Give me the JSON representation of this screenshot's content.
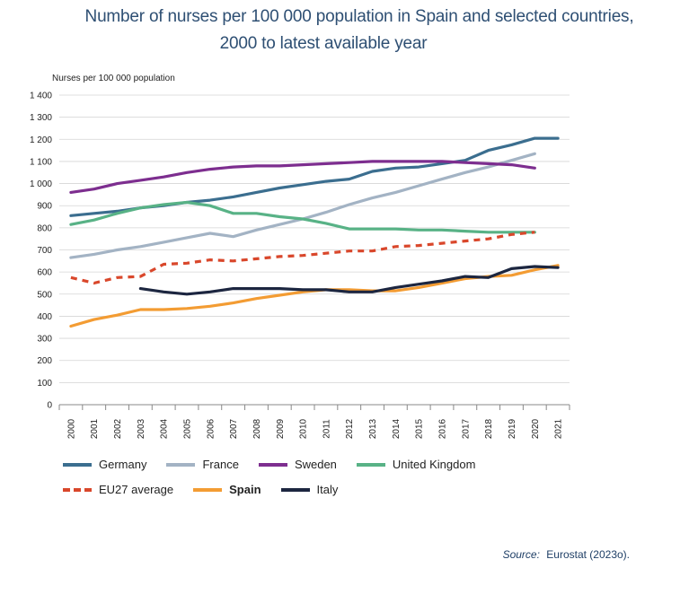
{
  "title_line1": "Number of nurses per 100 000 population in Spain and selected countries,",
  "title_line2": "2000 to latest available year",
  "source_label": "Source:",
  "source_text": "Eurostat (2023o).",
  "chart_data": {
    "type": "line",
    "title": "Number of nurses per 100 000 population in Spain and selected countries, 2000 to latest available year",
    "xlabel": "",
    "ylabel": "Nurses per 100 000 population",
    "ylim": [
      0,
      1400
    ],
    "yticks": [
      0,
      100,
      200,
      300,
      400,
      500,
      600,
      700,
      800,
      900,
      1000,
      1100,
      1200,
      1300,
      1400
    ],
    "ytick_labels": [
      "0",
      "100",
      "200",
      "300",
      "400",
      "500",
      "600",
      "700",
      "800",
      "900",
      "1 000",
      "1 100",
      "1 200",
      "1 300",
      "1 400"
    ],
    "x": [
      "2000",
      "2001",
      "2002",
      "2003",
      "2004",
      "2005",
      "2006",
      "2007",
      "2008",
      "2009",
      "2010",
      "2011",
      "2012",
      "2013",
      "2014",
      "2015",
      "2016",
      "2017",
      "2018",
      "2019",
      "2020",
      "2021"
    ],
    "grid": "horizontal",
    "legend_position": "bottom",
    "series": [
      {
        "name": "Germany",
        "color": "#3b6e8f",
        "style": "solid",
        "bold": false,
        "values": [
          855,
          865,
          875,
          890,
          900,
          915,
          925,
          940,
          960,
          980,
          995,
          1010,
          1020,
          1055,
          1070,
          1075,
          1090,
          1105,
          1150,
          1175,
          1205,
          1205
        ]
      },
      {
        "name": "France",
        "color": "#a3b3c4",
        "style": "solid",
        "bold": false,
        "values": [
          665,
          680,
          700,
          715,
          735,
          755,
          775,
          760,
          790,
          815,
          840,
          870,
          905,
          935,
          960,
          990,
          1020,
          1050,
          1075,
          1105,
          1135,
          null
        ]
      },
      {
        "name": "Sweden",
        "color": "#7d2e8f",
        "style": "solid",
        "bold": false,
        "values": [
          960,
          975,
          1000,
          1015,
          1030,
          1050,
          1065,
          1075,
          1080,
          1080,
          1085,
          1090,
          1095,
          1100,
          1100,
          1100,
          1100,
          1095,
          1090,
          1085,
          1070,
          null
        ]
      },
      {
        "name": "United Kingdom",
        "color": "#58b286",
        "style": "solid",
        "bold": false,
        "values": [
          815,
          835,
          865,
          890,
          905,
          915,
          900,
          865,
          865,
          850,
          840,
          820,
          795,
          795,
          795,
          790,
          790,
          785,
          780,
          780,
          780,
          null
        ]
      },
      {
        "name": "EU27 average",
        "color": "#d9472b",
        "style": "dashed",
        "bold": false,
        "values": [
          575,
          550,
          575,
          580,
          635,
          640,
          655,
          650,
          660,
          670,
          675,
          685,
          695,
          695,
          715,
          720,
          730,
          740,
          750,
          770,
          780,
          null
        ]
      },
      {
        "name": "Spain",
        "color": "#f39c33",
        "style": "solid",
        "bold": true,
        "values": [
          355,
          385,
          405,
          430,
          430,
          435,
          445,
          460,
          480,
          495,
          510,
          520,
          520,
          515,
          515,
          530,
          550,
          570,
          580,
          585,
          610,
          630
        ]
      },
      {
        "name": "Italy",
        "color": "#1c2640",
        "style": "solid",
        "bold": false,
        "values": [
          null,
          null,
          null,
          525,
          510,
          500,
          510,
          525,
          525,
          525,
          520,
          520,
          510,
          510,
          530,
          545,
          560,
          580,
          575,
          615,
          625,
          620
        ]
      }
    ]
  }
}
